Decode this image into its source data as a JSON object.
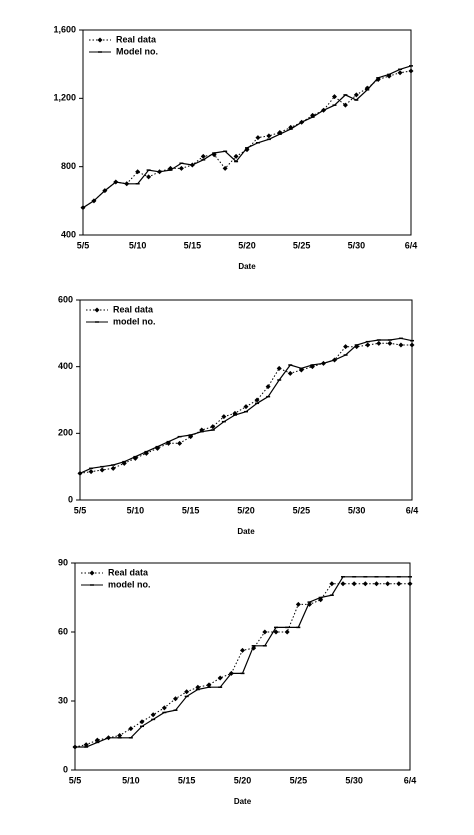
{
  "chart_data": [
    {
      "type": "line",
      "x_label": "Date",
      "categories": [
        "5/5",
        null,
        null,
        null,
        null,
        "5/10",
        null,
        null,
        null,
        null,
        "5/15",
        null,
        null,
        null,
        null,
        "5/20",
        null,
        null,
        null,
        null,
        "5/25",
        null,
        null,
        null,
        null,
        "5/30",
        null,
        null,
        null,
        null,
        "6/4"
      ],
      "ylim": [
        400,
        1600
      ],
      "yticks": [
        400,
        800,
        {
          "value": 1200,
          "label": "1,200"
        },
        {
          "value": 1600,
          "label": "1,600"
        }
      ],
      "legend": "upper-left",
      "series": [
        {
          "name": "Real data",
          "color": "#000000",
          "dashed": true,
          "marker": "diamond",
          "values": [
            560,
            600,
            660,
            710,
            700,
            770,
            740,
            770,
            790,
            790,
            810,
            860,
            870,
            790,
            860,
            900,
            970,
            980,
            1000,
            1030,
            1060,
            1100,
            1130,
            1210,
            1160,
            1220,
            1260,
            1310,
            1330,
            1350,
            1360
          ]
        },
        {
          "name": "Model no.",
          "color": "#000000",
          "dashed": false,
          "marker": "tick",
          "values": [
            560,
            600,
            660,
            710,
            700,
            700,
            780,
            770,
            780,
            820,
            810,
            840,
            880,
            890,
            830,
            910,
            940,
            960,
            990,
            1020,
            1060,
            1090,
            1130,
            1160,
            1220,
            1190,
            1250,
            1320,
            1340,
            1370,
            1390
          ]
        }
      ]
    },
    {
      "type": "line",
      "x_label": "Date",
      "categories": [
        "5/5",
        null,
        null,
        null,
        null,
        "5/10",
        null,
        null,
        null,
        null,
        "5/15",
        null,
        null,
        null,
        null,
        "5/20",
        null,
        null,
        null,
        null,
        "5/25",
        null,
        null,
        null,
        null,
        "5/30",
        null,
        null,
        null,
        null,
        "6/4"
      ],
      "ylim": [
        0,
        600
      ],
      "yticks": [
        0,
        200,
        400,
        600
      ],
      "legend": "upper-left",
      "series": [
        {
          "name": "Real data",
          "color": "#000000",
          "dashed": true,
          "marker": "diamond",
          "values": [
            80,
            85,
            90,
            95,
            110,
            125,
            140,
            155,
            170,
            170,
            190,
            210,
            220,
            250,
            260,
            280,
            300,
            340,
            395,
            380,
            390,
            400,
            410,
            420,
            460,
            460,
            465,
            470,
            470,
            465,
            465
          ]
        },
        {
          "name": "model no.",
          "color": "#000000",
          "dashed": false,
          "marker": "tick",
          "values": [
            80,
            95,
            100,
            105,
            115,
            130,
            145,
            160,
            175,
            190,
            195,
            205,
            210,
            235,
            255,
            265,
            290,
            310,
            360,
            405,
            395,
            405,
            410,
            420,
            435,
            465,
            475,
            480,
            480,
            485,
            478
          ]
        }
      ]
    },
    {
      "type": "line",
      "x_label": "Date",
      "categories": [
        "5/5",
        null,
        null,
        null,
        null,
        "5/10",
        null,
        null,
        null,
        null,
        "5/15",
        null,
        null,
        null,
        null,
        "5/20",
        null,
        null,
        null,
        null,
        "5/25",
        null,
        null,
        null,
        null,
        "5/30",
        null,
        null,
        null,
        null,
        "6/4"
      ],
      "ylim": [
        0,
        90
      ],
      "yticks": [
        0,
        30,
        60,
        90
      ],
      "legend": "upper-left",
      "series": [
        {
          "name": "Real data",
          "color": "#000000",
          "dashed": true,
          "marker": "diamond",
          "values": [
            10,
            11,
            13,
            14,
            15,
            18,
            21,
            24,
            27,
            31,
            34,
            36,
            37,
            40,
            42,
            52,
            53,
            60,
            60,
            60,
            72,
            72,
            74,
            81,
            81,
            81,
            81,
            81,
            81,
            81,
            81
          ]
        },
        {
          "name": "model no.",
          "color": "#000000",
          "dashed": false,
          "marker": "tick",
          "values": [
            10,
            10,
            12,
            14,
            14,
            14,
            19,
            22,
            25,
            26,
            32,
            35,
            36,
            36,
            42,
            42,
            54,
            54,
            62,
            62,
            62,
            73,
            75,
            76,
            84,
            84,
            84,
            84,
            84,
            84,
            84
          ]
        }
      ]
    }
  ]
}
